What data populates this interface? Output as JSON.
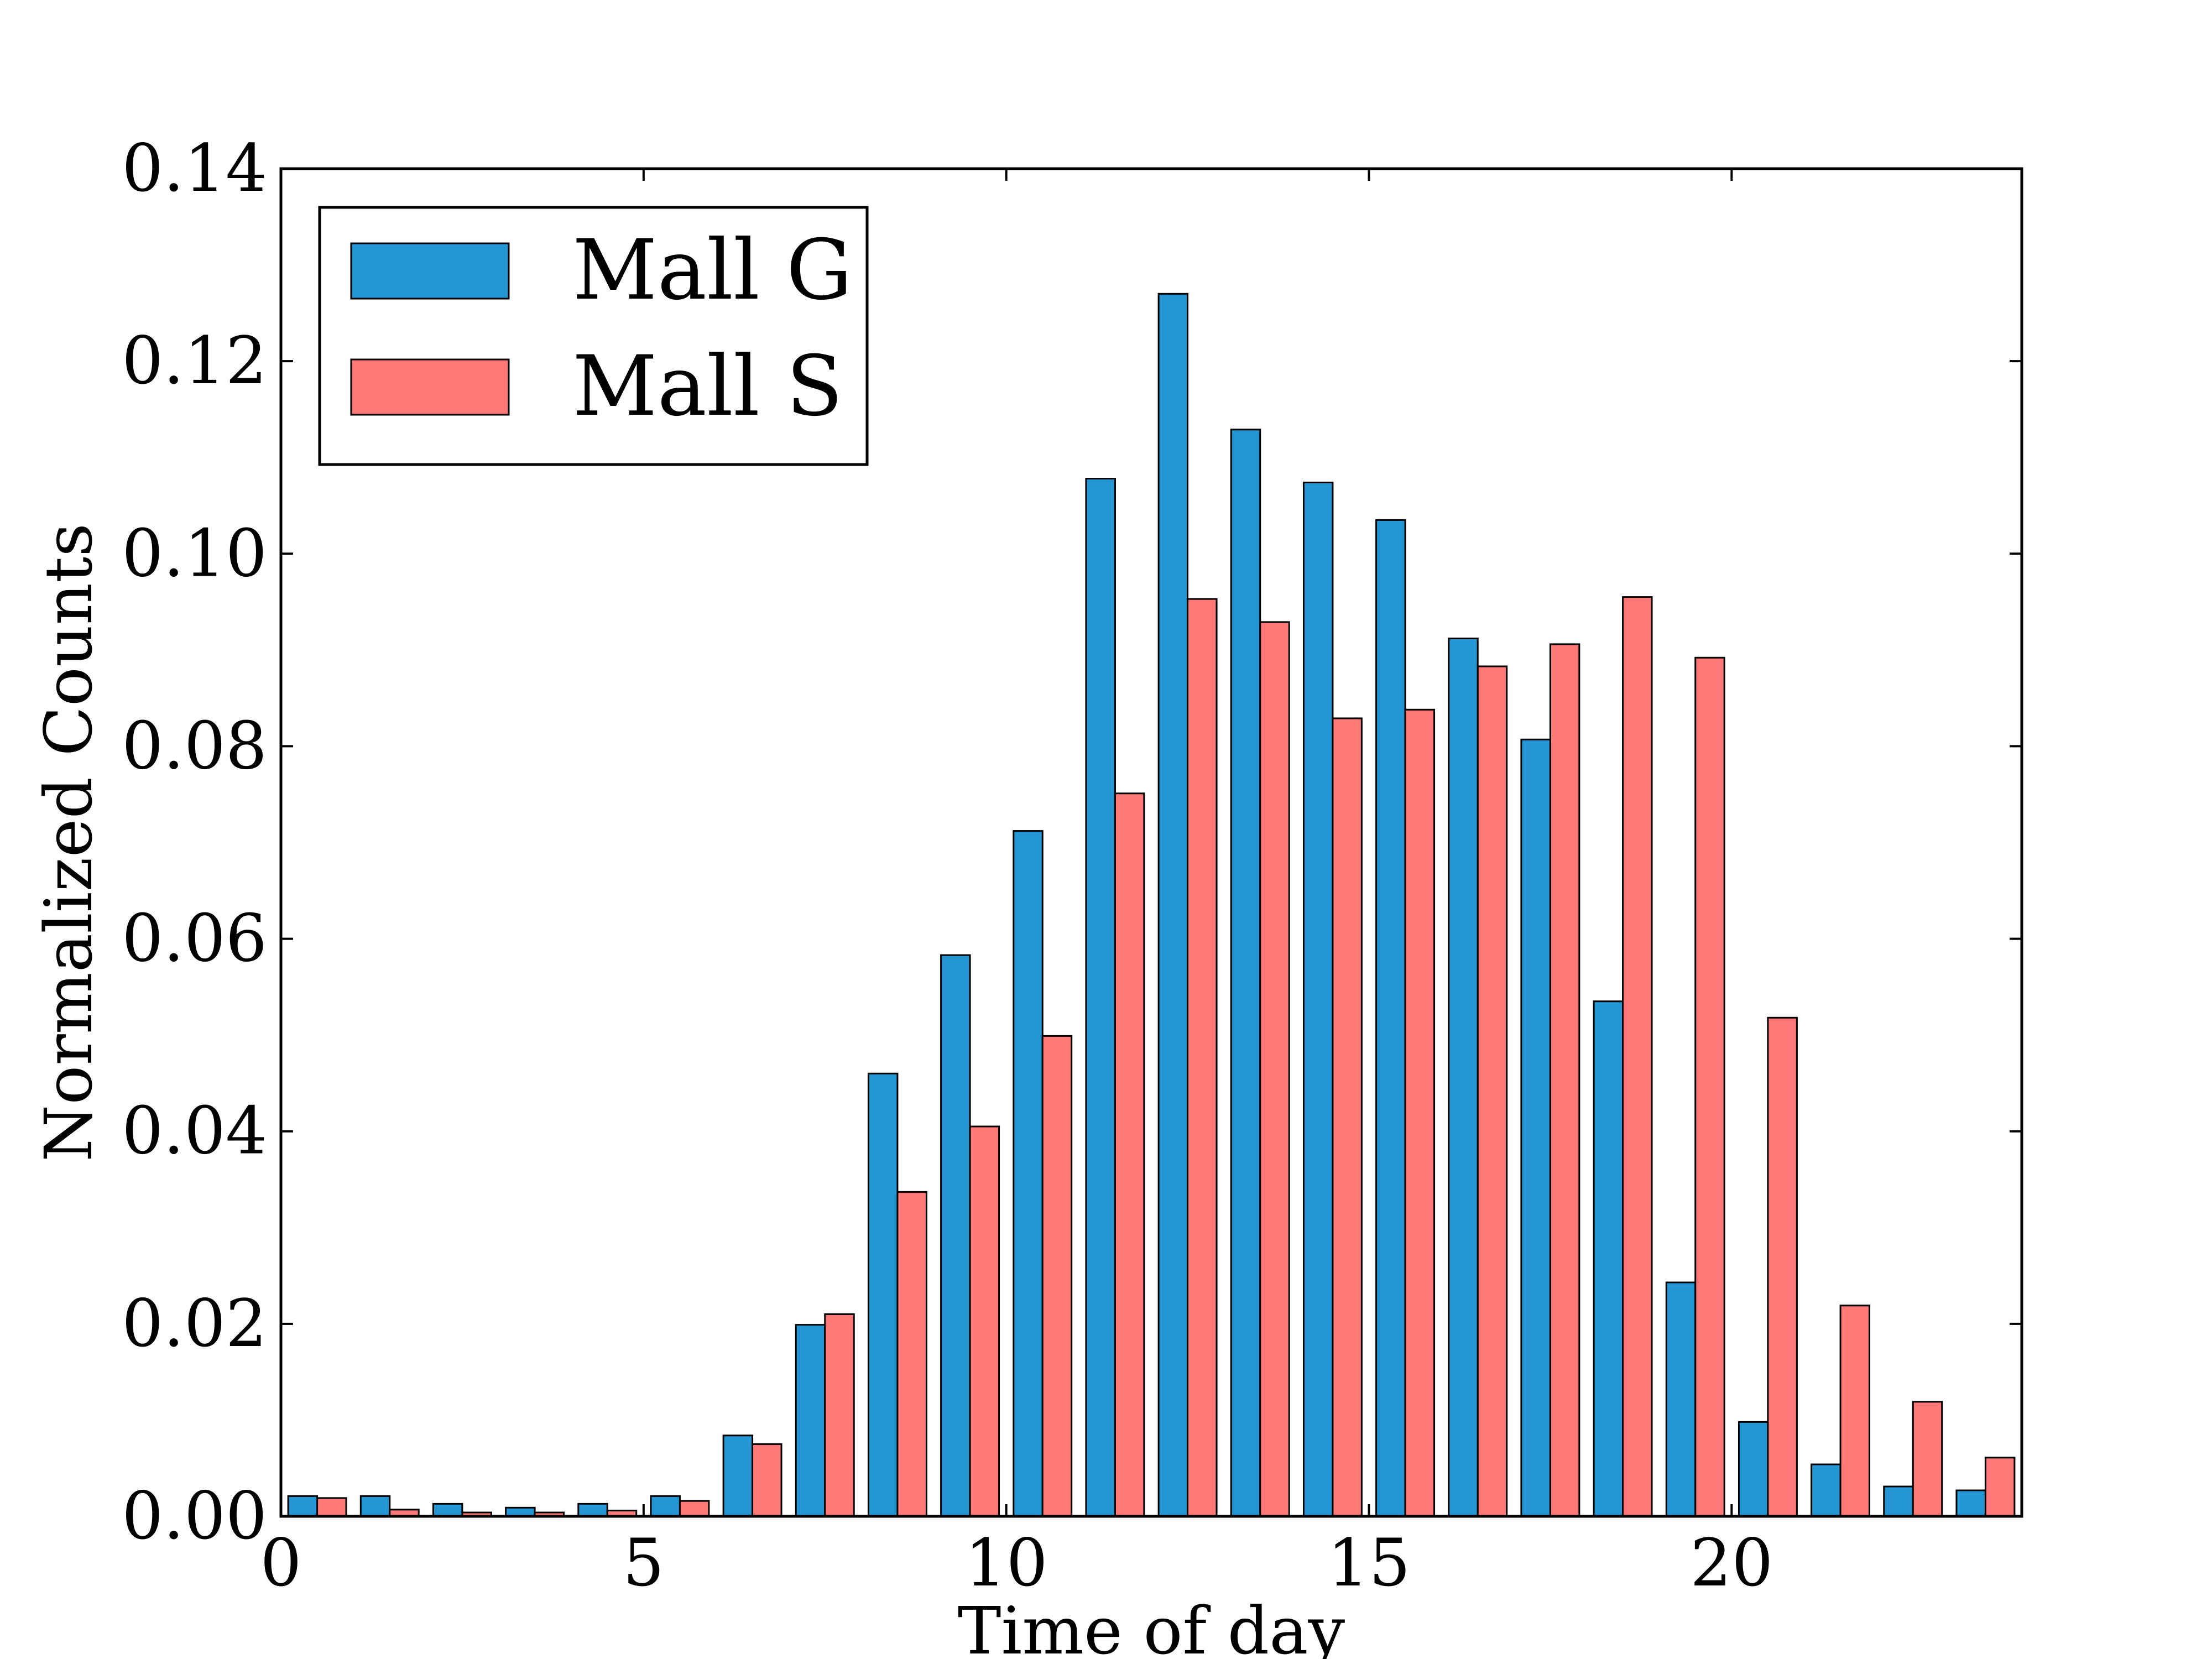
{
  "chart_data": {
    "type": "bar",
    "title": "",
    "xlabel": "Time of day",
    "ylabel": "Normalized Counts",
    "xlim": [
      0,
      24
    ],
    "ylim": [
      0,
      0.14
    ],
    "x_ticks": [
      0,
      5,
      10,
      15,
      20
    ],
    "x_tick_labels": [
      "0",
      "5",
      "10",
      "15",
      "20"
    ],
    "y_ticks": [
      0,
      0.02,
      0.04,
      0.06,
      0.08,
      0.1,
      0.12,
      0.14
    ],
    "y_tick_labels": [
      "0.00",
      "0.02",
      "0.04",
      "0.06",
      "0.08",
      "0.10",
      "0.12",
      "0.14"
    ],
    "grid": false,
    "legend_position": "top-left",
    "categories": [
      0,
      1,
      2,
      3,
      4,
      5,
      6,
      7,
      8,
      9,
      10,
      11,
      12,
      13,
      14,
      15,
      16,
      17,
      18,
      19,
      20,
      21,
      22,
      23
    ],
    "series": [
      {
        "name": "Mall G",
        "color": "#2596d4",
        "values": [
          0.0021,
          0.0021,
          0.0013,
          0.0009,
          0.0013,
          0.0021,
          0.0084,
          0.0199,
          0.046,
          0.0583,
          0.0712,
          0.1078,
          0.127,
          0.1129,
          0.1074,
          0.1035,
          0.0912,
          0.0807,
          0.0535,
          0.0243,
          0.0098,
          0.0054,
          0.0031,
          0.0027
        ]
      },
      {
        "name": "Mall S",
        "color": "#ff7878",
        "values": [
          0.0019,
          0.0007,
          0.0004,
          0.0004,
          0.0006,
          0.0016,
          0.0075,
          0.021,
          0.0337,
          0.0405,
          0.0499,
          0.0751,
          0.0953,
          0.0929,
          0.0829,
          0.0838,
          0.0883,
          0.0906,
          0.0955,
          0.0892,
          0.0518,
          0.0219,
          0.0119,
          0.0061
        ]
      }
    ]
  }
}
